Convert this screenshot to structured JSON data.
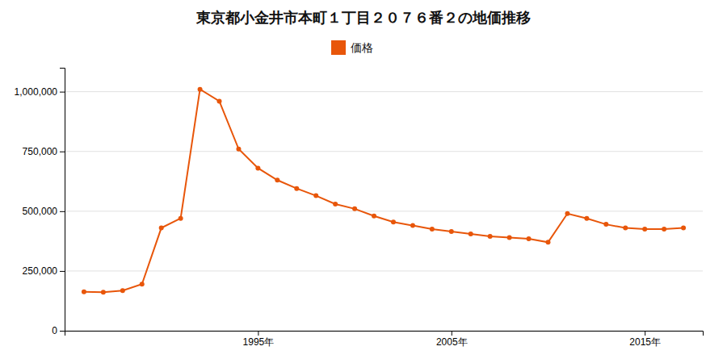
{
  "chart_data": {
    "type": "line",
    "title": "東京都小金井市本町１丁目２０７６番２の地価推移",
    "x": [
      1986,
      1987,
      1988,
      1989,
      1990,
      1991,
      1992,
      1993,
      1994,
      1995,
      1996,
      1997,
      1998,
      1999,
      2000,
      2001,
      2002,
      2003,
      2004,
      2005,
      2006,
      2007,
      2008,
      2009,
      2010,
      2011,
      2012,
      2013,
      2014,
      2015,
      2016,
      2017
    ],
    "series": [
      {
        "name": "価格",
        "color": "#E8560A",
        "marker": "circle",
        "line_style": "solid",
        "values": [
          163000,
          161000,
          168000,
          195000,
          430000,
          470000,
          1010000,
          960000,
          760000,
          680000,
          630000,
          595000,
          565000,
          530000,
          510000,
          480000,
          455000,
          440000,
          425000,
          415000,
          405000,
          395000,
          390000,
          385000,
          370000,
          490000,
          470000,
          445000,
          430000,
          425000,
          425000,
          430000
        ]
      }
    ],
    "xlim": [
      1985,
      2018
    ],
    "xticks": [
      {
        "value": 1995,
        "label": "1995年"
      },
      {
        "value": 2005,
        "label": "2005年"
      },
      {
        "value": 2015,
        "label": "2015年"
      }
    ],
    "ylim": [
      0,
      1100000
    ],
    "yticks": [
      0,
      {
        "value": 250000,
        "label": "250,000"
      },
      {
        "value": 500000,
        "label": "500,000"
      },
      {
        "value": 750000,
        "label": "750,000"
      },
      {
        "value": 1000000,
        "label": "1,000,000"
      }
    ],
    "grid": true,
    "legend": "top"
  }
}
